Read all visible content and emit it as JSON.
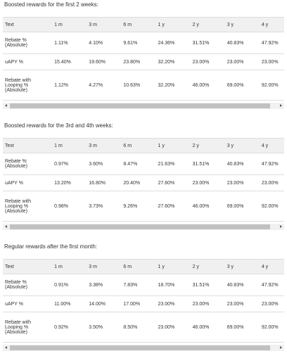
{
  "sections": [
    {
      "caption": "Boosted rewards for the first 2 weeks:",
      "header": [
        "Text",
        "1 m",
        "3 m",
        "6 m",
        "1 y",
        "2 y",
        "3 y",
        "4 y"
      ],
      "rows": [
        [
          "Rebate % (Absolute)",
          "1.11%",
          "4.10%",
          "9.61%",
          "24.36%",
          "31.51%",
          "40.83%",
          "47.92%"
        ],
        [
          "uAPY %",
          "15.40%",
          "19.60%",
          "23.80%",
          "32.20%",
          "23.00%",
          "23.00%",
          "23.00%"
        ],
        [
          "Rebate with Looping % (Absolute)",
          "1.12%",
          "4.27%",
          "10.63%",
          "32.20%",
          "46.00%",
          "69.00%",
          "92.00%"
        ]
      ]
    },
    {
      "caption": "Boosted rewards for the 3rd and 4th weeks:",
      "header": [
        "Text",
        "1 m",
        "3 m",
        "6 m",
        "1 y",
        "2 y",
        "3 y",
        "4 y"
      ],
      "rows": [
        [
          "Rebate % (Absolute)",
          "0.97%",
          "3.60%",
          "8.47%",
          "21.63%",
          "31.51%",
          "40.83%",
          "47.92%"
        ],
        [
          "uAPY %",
          "13.20%",
          "16.80%",
          "20.40%",
          "27.60%",
          "23.00%",
          "23.00%",
          "23.00%"
        ],
        [
          "Rebate with Looping % (Absolute)",
          "0.98%",
          "3.73%",
          "9.26%",
          "27.60%",
          "46.00%",
          "69.00%",
          "92.00%"
        ]
      ]
    },
    {
      "caption": "Regular rewards after the first month:",
      "header": [
        "Text",
        "1 m",
        "3 m",
        "6 m",
        "1 y",
        "2 y",
        "3 y",
        "4 y"
      ],
      "rows": [
        [
          "Rebate % (Absolute)",
          "0.91%",
          "3.38%",
          "7.83%",
          "18.70%",
          "31.51%",
          "40.83%",
          "47.92%"
        ],
        [
          "uAPY %",
          "11.00%",
          "14.00%",
          "17.00%",
          "23.00%",
          "23.00%",
          "23.00%",
          "23.00%"
        ],
        [
          "Rebate with Looping % (Absolute)",
          "0.92%",
          "3.50%",
          "8.50%",
          "23.00%",
          "46.00%",
          "69.00%",
          "92.00%"
        ]
      ]
    }
  ]
}
